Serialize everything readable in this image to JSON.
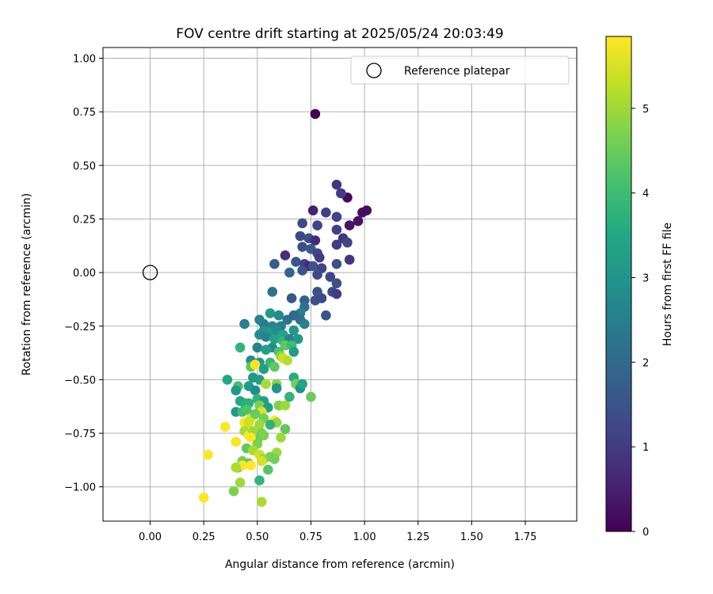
{
  "chart_data": {
    "type": "scatter",
    "title": "FOV centre drift starting at 2025/05/24 20:03:49",
    "xlabel": "Angular distance from reference (arcmin)",
    "ylabel": "Rotation from reference (arcmin)",
    "xlim": [
      -0.22,
      1.99
    ],
    "ylim": [
      -1.16,
      1.05
    ],
    "xticks": [
      0.0,
      0.25,
      0.5,
      0.75,
      1.0,
      1.25,
      1.5,
      1.75
    ],
    "xtick_labels": [
      "0.00",
      "0.25",
      "0.50",
      "0.75",
      "1.00",
      "1.25",
      "1.50",
      "1.75"
    ],
    "yticks": [
      -1.0,
      -0.75,
      -0.5,
      -0.25,
      0.0,
      0.25,
      0.5,
      0.75,
      1.0
    ],
    "ytick_labels": [
      "−1.00",
      "−0.75",
      "−0.50",
      "−0.25",
      "0.00",
      "0.25",
      "0.50",
      "0.75",
      "1.00"
    ],
    "grid": true,
    "legend": {
      "position": "top-right",
      "entries": [
        "Reference platepar"
      ]
    },
    "reference_point": {
      "name": "Reference platepar",
      "x": 0.0,
      "y": 0.0,
      "marker": "open-circle"
    },
    "colorbar": {
      "label": "Hours from first FF file",
      "min": 0,
      "max": 5.85,
      "ticks": [
        0,
        1,
        2,
        3,
        4,
        5
      ],
      "tick_labels": [
        "0",
        "1",
        "2",
        "3",
        "4",
        "5"
      ],
      "colormap": "viridis"
    },
    "series": [
      {
        "color_by": "hours",
        "points": [
          [
            0.77,
            0.74,
            0.0
          ],
          [
            0.92,
            0.35,
            0.1
          ],
          [
            1.01,
            0.29,
            0.2
          ],
          [
            0.99,
            0.28,
            0.2
          ],
          [
            0.97,
            0.24,
            0.3
          ],
          [
            0.93,
            0.22,
            0.3
          ],
          [
            0.87,
            0.41,
            0.9
          ],
          [
            0.89,
            0.37,
            1.0
          ],
          [
            0.76,
            0.29,
            0.5
          ],
          [
            0.82,
            0.28,
            1.1
          ],
          [
            0.87,
            0.26,
            1.2
          ],
          [
            0.71,
            0.23,
            1.3
          ],
          [
            0.78,
            0.22,
            1.2
          ],
          [
            0.87,
            0.2,
            1.1
          ],
          [
            0.9,
            0.16,
            0.9
          ],
          [
            0.7,
            0.17,
            1.3
          ],
          [
            0.74,
            0.16,
            1.4
          ],
          [
            0.77,
            0.15,
            0.7
          ],
          [
            0.87,
            0.13,
            1.0
          ],
          [
            0.92,
            0.14,
            1.2
          ],
          [
            0.71,
            0.12,
            1.4
          ],
          [
            0.75,
            0.11,
            1.6
          ],
          [
            0.78,
            0.09,
            1.2
          ],
          [
            0.63,
            0.08,
            0.8
          ],
          [
            0.79,
            0.07,
            1.0
          ],
          [
            0.93,
            0.06,
            0.9
          ],
          [
            0.68,
            0.05,
            1.6
          ],
          [
            0.72,
            0.04,
            1.1
          ],
          [
            0.74,
            0.03,
            0.6
          ],
          [
            0.76,
            0.03,
            1.5
          ],
          [
            0.8,
            0.02,
            1.2
          ],
          [
            0.58,
            0.04,
            1.7
          ],
          [
            0.87,
            0.04,
            1.4
          ],
          [
            0.65,
            0.0,
            1.9
          ],
          [
            0.71,
            0.01,
            1.5
          ],
          [
            0.78,
            -0.01,
            1.3
          ],
          [
            0.84,
            -0.02,
            1.2
          ],
          [
            0.87,
            -0.05,
            1.4
          ],
          [
            0.57,
            -0.09,
            2.2
          ],
          [
            0.78,
            -0.09,
            1.5
          ],
          [
            0.85,
            -0.09,
            1.3
          ],
          [
            0.87,
            -0.1,
            1.0
          ],
          [
            0.66,
            -0.12,
            1.6
          ],
          [
            0.72,
            -0.13,
            1.8
          ],
          [
            0.77,
            -0.13,
            1.4
          ],
          [
            0.8,
            -0.12,
            1.3
          ],
          [
            0.72,
            -0.16,
            2.2
          ],
          [
            0.7,
            -0.19,
            2.5
          ],
          [
            0.82,
            -0.2,
            1.5
          ],
          [
            0.56,
            -0.19,
            3.1
          ],
          [
            0.6,
            -0.2,
            2.8
          ],
          [
            0.64,
            -0.22,
            2.2
          ],
          [
            0.67,
            -0.2,
            2.0
          ],
          [
            0.7,
            -0.22,
            2.1
          ],
          [
            0.72,
            -0.24,
            2.6
          ],
          [
            0.51,
            -0.22,
            2.6
          ],
          [
            0.53,
            -0.24,
            2.4
          ],
          [
            0.57,
            -0.25,
            2.7
          ],
          [
            0.61,
            -0.25,
            2.4
          ],
          [
            0.44,
            -0.24,
            2.5
          ],
          [
            0.53,
            -0.27,
            3.0
          ],
          [
            0.56,
            -0.28,
            3.2
          ],
          [
            0.59,
            -0.27,
            2.8
          ],
          [
            0.62,
            -0.29,
            3.4
          ],
          [
            0.67,
            -0.27,
            3.1
          ],
          [
            0.51,
            -0.29,
            2.8
          ],
          [
            0.54,
            -0.3,
            2.6
          ],
          [
            0.58,
            -0.31,
            3.4
          ],
          [
            0.62,
            -0.32,
            3.8
          ],
          [
            0.65,
            -0.31,
            2.6
          ],
          [
            0.69,
            -0.31,
            3.1
          ],
          [
            0.63,
            -0.34,
            4.4
          ],
          [
            0.66,
            -0.34,
            4.0
          ],
          [
            0.57,
            -0.35,
            2.8
          ],
          [
            0.42,
            -0.35,
            3.8
          ],
          [
            0.5,
            -0.35,
            2.6
          ],
          [
            0.54,
            -0.36,
            3.3
          ],
          [
            0.6,
            -0.37,
            4.2
          ],
          [
            0.67,
            -0.37,
            3.2
          ],
          [
            0.61,
            -0.39,
            4.8
          ],
          [
            0.62,
            -0.4,
            5.4
          ],
          [
            0.64,
            -0.41,
            5.2
          ],
          [
            0.47,
            -0.41,
            2.9
          ],
          [
            0.51,
            -0.42,
            3.0
          ],
          [
            0.56,
            -0.42,
            3.9
          ],
          [
            0.58,
            -0.44,
            4.4
          ],
          [
            0.47,
            -0.44,
            4.4
          ],
          [
            0.49,
            -0.43,
            5.8
          ],
          [
            0.53,
            -0.45,
            3.3
          ],
          [
            0.36,
            -0.5,
            3.5
          ],
          [
            0.41,
            -0.53,
            4.1
          ],
          [
            0.4,
            -0.55,
            3.1
          ],
          [
            0.48,
            -0.49,
            3.1
          ],
          [
            0.51,
            -0.5,
            3.2
          ],
          [
            0.54,
            -0.52,
            5.1
          ],
          [
            0.59,
            -0.52,
            4.8
          ],
          [
            0.46,
            -0.53,
            3.2
          ],
          [
            0.49,
            -0.55,
            2.8
          ],
          [
            0.59,
            -0.54,
            3.0
          ],
          [
            0.67,
            -0.49,
            3.6
          ],
          [
            0.68,
            -0.52,
            4.6
          ],
          [
            0.7,
            -0.54,
            3.0
          ],
          [
            0.71,
            -0.52,
            3.4
          ],
          [
            0.75,
            -0.58,
            4.5
          ],
          [
            0.42,
            -0.6,
            3.5
          ],
          [
            0.44,
            -0.61,
            3.6
          ],
          [
            0.46,
            -0.61,
            3.7
          ],
          [
            0.5,
            -0.59,
            3.8
          ],
          [
            0.53,
            -0.6,
            3.3
          ],
          [
            0.51,
            -0.62,
            4.7
          ],
          [
            0.55,
            -0.63,
            3.3
          ],
          [
            0.6,
            -0.62,
            4.7
          ],
          [
            0.63,
            -0.62,
            5.0
          ],
          [
            0.65,
            -0.58,
            3.8
          ],
          [
            0.4,
            -0.65,
            3.2
          ],
          [
            0.43,
            -0.65,
            4.1
          ],
          [
            0.45,
            -0.64,
            4.2
          ],
          [
            0.52,
            -0.65,
            5.6
          ],
          [
            0.47,
            -0.68,
            5.5
          ],
          [
            0.49,
            -0.66,
            4.5
          ],
          [
            0.44,
            -0.7,
            5.8
          ],
          [
            0.46,
            -0.7,
            5.4
          ],
          [
            0.53,
            -0.68,
            4.6
          ],
          [
            0.58,
            -0.69,
            5.9
          ],
          [
            0.59,
            -0.7,
            4.9
          ],
          [
            0.35,
            -0.72,
            5.9
          ],
          [
            0.51,
            -0.71,
            5.0
          ],
          [
            0.56,
            -0.71,
            3.8
          ],
          [
            0.44,
            -0.74,
            5.1
          ],
          [
            0.46,
            -0.76,
            5.8
          ],
          [
            0.48,
            -0.74,
            5.0
          ],
          [
            0.52,
            -0.75,
            4.6
          ],
          [
            0.5,
            -0.78,
            4.4
          ],
          [
            0.53,
            -0.76,
            4.7
          ],
          [
            0.61,
            -0.77,
            5.0
          ],
          [
            0.63,
            -0.73,
            4.4
          ],
          [
            0.4,
            -0.79,
            5.8
          ],
          [
            0.47,
            -0.77,
            5.9
          ],
          [
            0.45,
            -0.82,
            4.4
          ],
          [
            0.5,
            -0.8,
            4.7
          ],
          [
            0.48,
            -0.83,
            5.1
          ],
          [
            0.59,
            -0.84,
            5.0
          ],
          [
            0.27,
            -0.85,
            5.9
          ],
          [
            0.51,
            -0.85,
            5.4
          ],
          [
            0.53,
            -0.87,
            4.9
          ],
          [
            0.56,
            -0.86,
            4.7
          ],
          [
            0.58,
            -0.87,
            4.6
          ],
          [
            0.52,
            -0.88,
            5.5
          ],
          [
            0.43,
            -0.88,
            4.6
          ],
          [
            0.46,
            -0.89,
            4.4
          ],
          [
            0.41,
            -0.91,
            4.3
          ],
          [
            0.43,
            -0.9,
            5.9
          ],
          [
            0.47,
            -0.9,
            5.9
          ],
          [
            0.55,
            -0.92,
            4.3
          ],
          [
            0.4,
            -0.91,
            5.1
          ],
          [
            0.42,
            -0.98,
            5.0
          ],
          [
            0.51,
            -0.97,
            3.8
          ],
          [
            0.39,
            -1.02,
            4.7
          ],
          [
            0.52,
            -1.07,
            5.1
          ],
          [
            0.25,
            -1.05,
            5.9
          ]
        ]
      }
    ]
  }
}
